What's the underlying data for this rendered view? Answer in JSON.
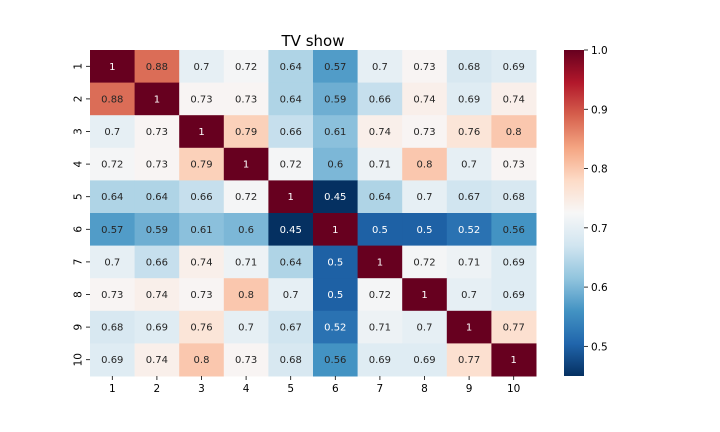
{
  "chart_data": {
    "type": "heatmap",
    "title": "TV show",
    "xlabel": "",
    "ylabel": "",
    "x_categories": [
      "1",
      "2",
      "3",
      "4",
      "5",
      "6",
      "7",
      "8",
      "9",
      "10"
    ],
    "y_categories": [
      "1",
      "2",
      "3",
      "4",
      "5",
      "6",
      "7",
      "8",
      "9",
      "10"
    ],
    "values": [
      [
        1,
        0.88,
        0.7,
        0.72,
        0.64,
        0.57,
        0.7,
        0.73,
        0.68,
        0.69
      ],
      [
        0.88,
        1,
        0.73,
        0.73,
        0.64,
        0.59,
        0.66,
        0.74,
        0.69,
        0.74
      ],
      [
        0.7,
        0.73,
        1,
        0.79,
        0.66,
        0.61,
        0.74,
        0.73,
        0.76,
        0.8
      ],
      [
        0.72,
        0.73,
        0.79,
        1,
        0.72,
        0.6,
        0.71,
        0.8,
        0.7,
        0.73
      ],
      [
        0.64,
        0.64,
        0.66,
        0.72,
        1,
        0.45,
        0.64,
        0.7,
        0.67,
        0.68
      ],
      [
        0.57,
        0.59,
        0.61,
        0.6,
        0.45,
        1,
        0.5,
        0.5,
        0.52,
        0.56
      ],
      [
        0.7,
        0.66,
        0.74,
        0.71,
        0.64,
        0.5,
        1,
        0.72,
        0.71,
        0.69
      ],
      [
        0.73,
        0.74,
        0.73,
        0.8,
        0.7,
        0.5,
        0.72,
        1,
        0.7,
        0.69
      ],
      [
        0.68,
        0.69,
        0.76,
        0.7,
        0.67,
        0.52,
        0.71,
        0.7,
        1,
        0.77
      ],
      [
        0.69,
        0.74,
        0.8,
        0.73,
        0.68,
        0.56,
        0.69,
        0.69,
        0.77,
        1
      ]
    ],
    "colorbar": {
      "range": [
        0.45,
        1.0
      ],
      "ticks": [
        0.5,
        0.6,
        0.7,
        0.8,
        0.9,
        1.0
      ],
      "tick_labels": [
        "0.5",
        "0.6",
        "0.7",
        "0.8",
        "0.9",
        "1.0"
      ]
    },
    "colormap": "RdBu_r",
    "annotations": true
  }
}
